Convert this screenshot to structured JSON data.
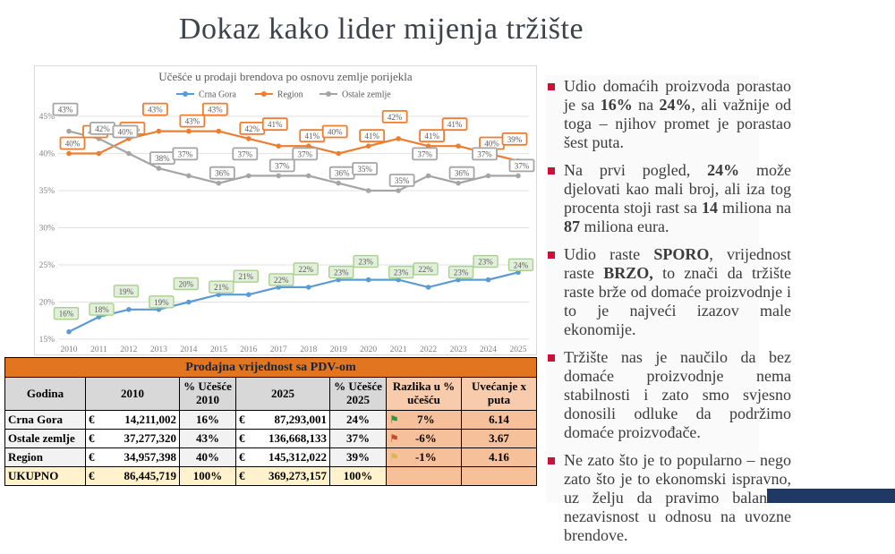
{
  "slide": {
    "title": "Dokaz kako lider mijenja tržište"
  },
  "chart_data": {
    "type": "line",
    "title": "Učešće u prodaji brendova po osnovu zemlje porijekla",
    "x": [
      2010,
      2011,
      2012,
      2013,
      2014,
      2015,
      2016,
      2017,
      2018,
      2019,
      2020,
      2021,
      2022,
      2023,
      2024,
      2025
    ],
    "series": [
      {
        "name": "Crna Gora",
        "color": "#5B9BD5",
        "label_bg": "#E2EFDA",
        "label_border": "#A9D18E",
        "values": [
          16,
          18,
          19,
          19,
          20,
          21,
          21,
          22,
          22,
          23,
          23,
          23,
          22,
          23,
          23,
          24
        ]
      },
      {
        "name": "Region",
        "color": "#ED7D31",
        "label_bg": "#FFFFFF",
        "label_border": "#ED7D31",
        "values": [
          40,
          40,
          42,
          43,
          43,
          43,
          42,
          41,
          41,
          40,
          41,
          42,
          41,
          41,
          40,
          39
        ]
      },
      {
        "name": "Ostale zemlje",
        "color": "#A5A5A5",
        "label_bg": "#FFFFFF",
        "label_border": "#A5A5A5",
        "values": [
          43,
          42,
          40,
          38,
          37,
          36,
          37,
          37,
          37,
          36,
          35,
          35,
          37,
          36,
          37,
          37
        ]
      }
    ],
    "ylim": [
      15,
      45
    ],
    "yticks": [
      "15%",
      "20%",
      "25%",
      "30%",
      "35%",
      "40%",
      "45%"
    ],
    "xlabel": "",
    "ylabel": "",
    "grid": true,
    "legend_position": "top",
    "data_labels": true
  },
  "table": {
    "title": "Prodajna vrijednost sa PDV-om",
    "headers": [
      "Godina",
      "2010",
      "% Učešće\n2010",
      "2025",
      "% Učešće\n2025",
      "Razlika u %\nučešću",
      "Uvećanje x\nputa"
    ],
    "rows": [
      {
        "label": "Crna Gora",
        "v2010": "14,211,002",
        "p2010": "16%",
        "v2025": "87,293,001",
        "p2025": "24%",
        "flag": "green",
        "razlika": "7%",
        "uvecanje": "6.14",
        "total": false
      },
      {
        "label": "Ostale zemlje",
        "v2010": "37,277,320",
        "p2010": "43%",
        "v2025": "136,668,133",
        "p2025": "37%",
        "flag": "red",
        "razlika": "-6%",
        "uvecanje": "3.67",
        "total": false
      },
      {
        "label": "Region",
        "v2010": "34,957,398",
        "p2010": "40%",
        "v2025": "145,312,022",
        "p2025": "39%",
        "flag": "yellow",
        "razlika": "-1%",
        "uvecanje": "4.16",
        "total": false
      },
      {
        "label": "UKUPNO",
        "v2010": "86,445,719",
        "p2010": "100%",
        "v2025": "369,273,157",
        "p2025": "100%",
        "flag": "",
        "razlika": "",
        "uvecanje": "",
        "total": true
      }
    ],
    "currency_symbol": "€"
  },
  "bullets": [
    "Udio domaćih proizvoda porastao je sa **16%** na **24%**, ali važnije od toga – njihov promet je porastao šest puta.",
    "Na prvi pogled, **24%** može djelovati kao mali broj, ali iza tog procenta stoji rast sa **14** miliona na **87** miliona eura.",
    "Udio raste **SPORO**, vrijednost raste **BRZO,** to znači da tržište raste brže od domaće proizvodnje i to je najveći izazov male ekonomije.",
    "Tržište nas je naučilo da bez domaće proizvodnje nema stabilnosti i zato smo svjesno donosili odluke da podržimo domaće proizvođače.",
    "Ne zato što je to popularno – nego zato što je to ekonomski ispravno, uz želju da pravimo balans i nezavisnost u odnosu na uvozne brendove."
  ],
  "colors": {
    "title_text": "#3F424A",
    "bullet_marker": "#C9113A",
    "table_header_orange": "#E2751F",
    "table_peach_header": "#F8CBAD",
    "table_peach_cell": "#F6C09B",
    "table_total_yellow": "#FFF2CC",
    "flag_green": "#2C9645",
    "flag_red": "#C94A33",
    "flag_yellow": "#D9B64E",
    "footer_bar_navy": "#1F3864",
    "series_blue": "#5B9BD5",
    "series_orange": "#ED7D31",
    "series_gray": "#A5A5A5"
  }
}
